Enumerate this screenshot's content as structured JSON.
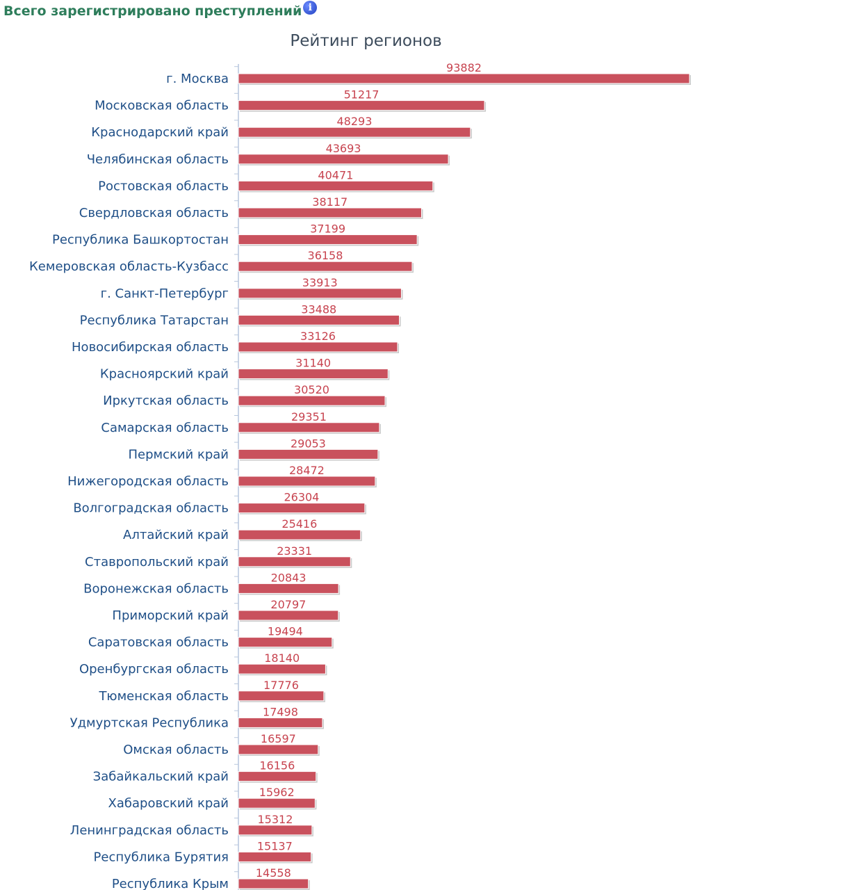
{
  "header": {
    "title": "Всего зарегистрировано преступлений",
    "info_icon": "info-icon"
  },
  "colors": {
    "bar": "#c9515d",
    "bar_shadow": "#c8c8c8",
    "axis": "#b7c6dd",
    "category": "#1f4f87",
    "value": "#c7434f"
  },
  "chart_data": {
    "type": "bar",
    "orientation": "horizontal",
    "title": "Рейтинг регионов",
    "xlim": [
      0,
      95000
    ],
    "grid": false,
    "categories": [
      "г. Москва",
      "Московская область",
      "Краснодарский край",
      "Челябинская область",
      "Ростовская область",
      "Свердловская область",
      "Республика Башкортостан",
      "Кемеровская область-Кузбасс",
      "г. Санкт-Петербург",
      "Республика Татарстан",
      "Новосибирская область",
      "Красноярский край",
      "Иркутская область",
      "Самарская область",
      "Пермский край",
      "Нижегородская область",
      "Волгоградская область",
      "Алтайский край",
      "Ставропольский край",
      "Воронежская область",
      "Приморский край",
      "Саратовская область",
      "Оренбургская область",
      "Тюменская область",
      "Удмуртская Республика",
      "Омская область",
      "Забайкальский край",
      "Хабаровский край",
      "Ленинградская область",
      "Республика Бурятия",
      "Республика Крым"
    ],
    "values": [
      93882,
      51217,
      48293,
      43693,
      40471,
      38117,
      37199,
      36158,
      33913,
      33488,
      33126,
      31140,
      30520,
      29351,
      29053,
      28472,
      26304,
      25416,
      23331,
      20843,
      20797,
      19494,
      18140,
      17776,
      17498,
      16597,
      16156,
      15962,
      15312,
      15137,
      14558
    ]
  }
}
